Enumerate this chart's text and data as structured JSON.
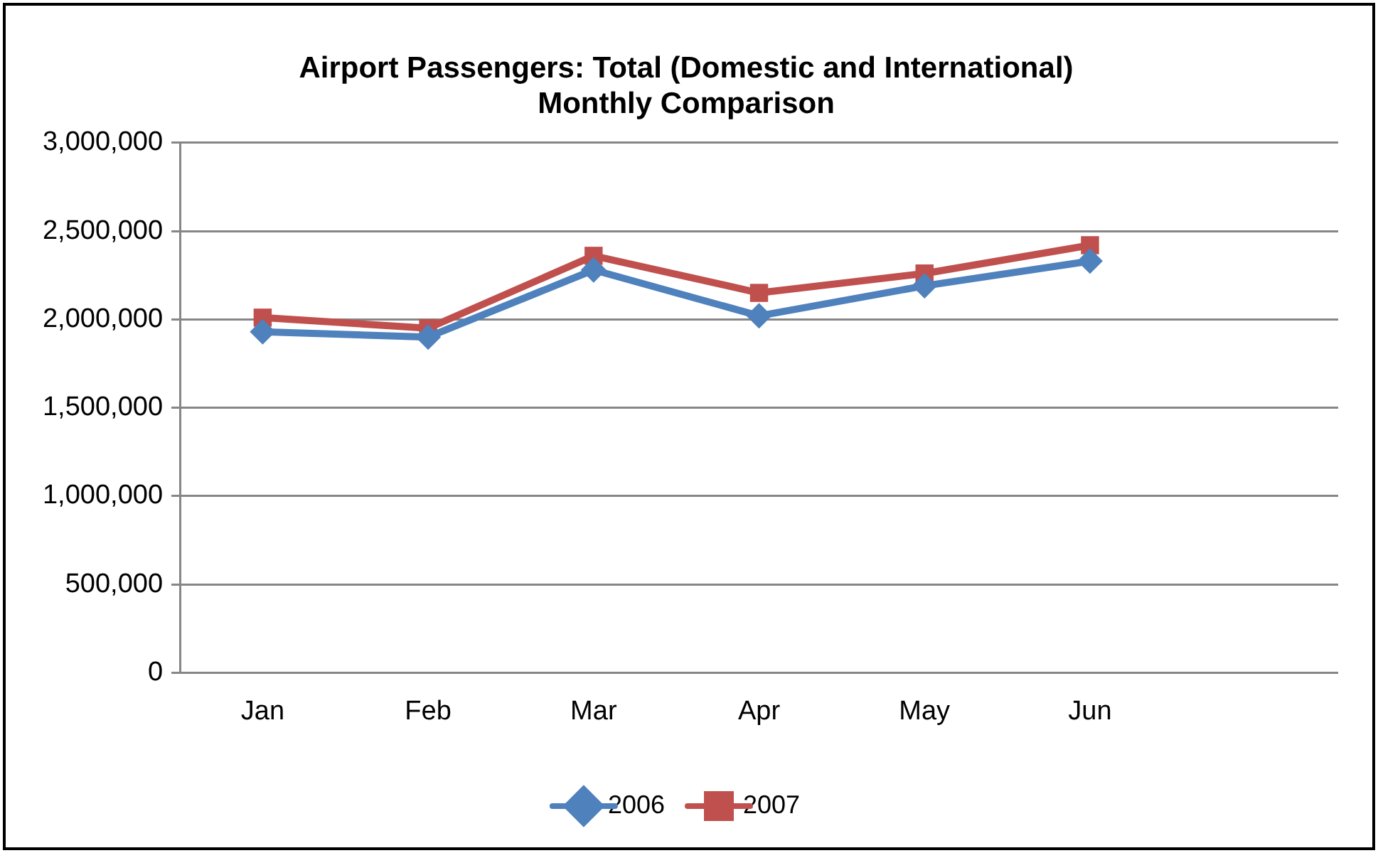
{
  "chart_data": {
    "type": "line",
    "title": [
      "Airport Passengers: Total (Domestic and International)",
      "Monthly Comparison"
    ],
    "categories": [
      "Jan",
      "Feb",
      "Mar",
      "Apr",
      "May",
      "Jun",
      null
    ],
    "series": [
      {
        "name": "2006",
        "color": "#4f81bd",
        "marker": "diamond",
        "values": [
          1930000,
          1900000,
          2280000,
          2020000,
          2190000,
          2330000,
          null
        ]
      },
      {
        "name": "2007",
        "color": "#c0504d",
        "marker": "square",
        "values": [
          2010000,
          1950000,
          2360000,
          2150000,
          2260000,
          2420000,
          null
        ]
      }
    ],
    "ylim": [
      0,
      3000000
    ],
    "yticks": [
      {
        "value": 0,
        "label": "0"
      },
      {
        "value": 500000,
        "label": "500,000"
      },
      {
        "value": 1000000,
        "label": "1,000,000"
      },
      {
        "value": 1500000,
        "label": "1,500,000"
      },
      {
        "value": 2000000,
        "label": "2,000,000"
      },
      {
        "value": 2500000,
        "label": "2,500,000"
      },
      {
        "value": 3000000,
        "label": "3,000,000"
      }
    ],
    "grid": "y",
    "legend": "bottom",
    "line_style": "solid"
  }
}
